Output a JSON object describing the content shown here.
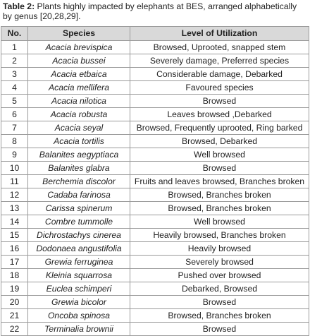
{
  "caption": {
    "label": "Table 2:",
    "text": "Plants highly impacted by elephants at BES, arranged alphabetically by genus [20,28,29]."
  },
  "table": {
    "headers": [
      "No.",
      "Species",
      "Level of Utilization"
    ],
    "rows": [
      [
        "1",
        "Acacia brevispica",
        "Browsed, Uprooted, snapped stem"
      ],
      [
        "2",
        "Acacia bussei",
        "Severely damage, Preferred species"
      ],
      [
        "3",
        "Acacia etbaica",
        "Considerable damage, Debarked"
      ],
      [
        "4",
        "Acacia mellifera",
        "Favoured species"
      ],
      [
        "5",
        "Acacia nilotica",
        "Browsed"
      ],
      [
        "6",
        "Acacia robusta",
        "Leaves browsed ,Debarked"
      ],
      [
        "7",
        "Acacia seyal",
        "Browsed, Frequently uprooted, Ring barked"
      ],
      [
        "8",
        "Acacia tortilis",
        "Browsed, Debarked"
      ],
      [
        "9",
        "Balanites aegyptiaca",
        "Well browsed"
      ],
      [
        "10",
        "Balanites glabra",
        "Browsed"
      ],
      [
        "11",
        "Berchemia discolor",
        "Fruits and leaves browsed, Branches broken"
      ],
      [
        "12",
        "Cadaba farinosa",
        "Browsed, Branches broken"
      ],
      [
        "13",
        "Carissa spinerum",
        "Browsed, Branches broken"
      ],
      [
        "14",
        "Combre tummolle",
        "Well browsed"
      ],
      [
        "15",
        "Dichrostachys cinerea",
        "Heavily browsed, Branches broken"
      ],
      [
        "16",
        "Dodonaea angustifolia",
        "Heavily browsed"
      ],
      [
        "17",
        "Grewia ferruginea",
        "Severely browsed"
      ],
      [
        "18",
        "Kleinia squarrosa",
        "Pushed over browsed"
      ],
      [
        "19",
        "Euclea schimperi",
        "Debarked, Browsed"
      ],
      [
        "20",
        "Grewia bicolor",
        "Browsed"
      ],
      [
        "21",
        "Oncoba spinosa",
        "Browsed, Branches broken"
      ],
      [
        "22",
        "Terminalia brownii",
        "Browsed"
      ]
    ]
  }
}
